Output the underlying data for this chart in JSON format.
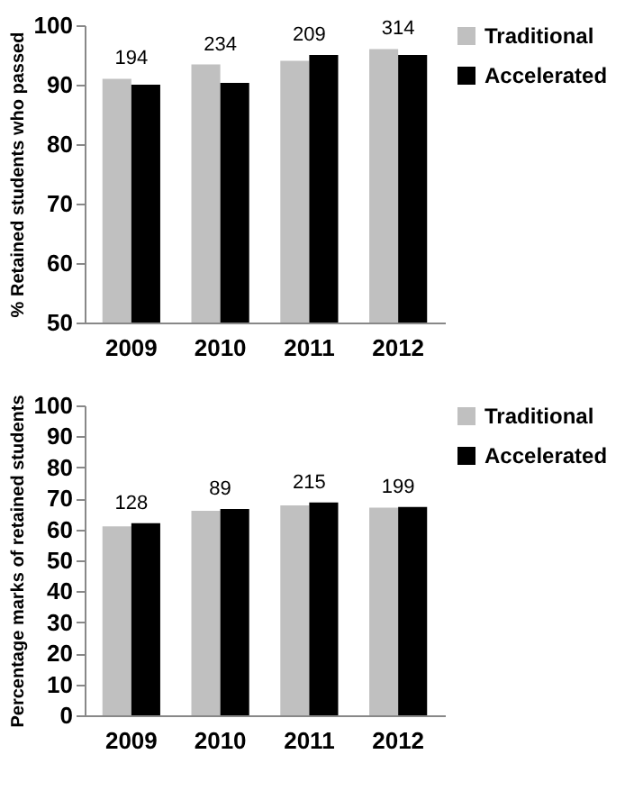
{
  "chart_data": [
    {
      "type": "bar",
      "ylabel": "% Retained students who passed",
      "categories": [
        "2009",
        "2010",
        "2011",
        "2012"
      ],
      "series": [
        {
          "name": "Traditional",
          "color": "#c0c0c0",
          "values": [
            91,
            93.4,
            94,
            96
          ]
        },
        {
          "name": "Accelerated",
          "color": "#000000",
          "values": [
            90,
            90.3,
            95,
            95
          ]
        }
      ],
      "ylim": [
        50,
        100
      ],
      "yticks": [
        50,
        60,
        70,
        80,
        90,
        100
      ],
      "grid": false,
      "legend": "top right",
      "annotations": [
        "194",
        "234",
        "209",
        "314"
      ]
    },
    {
      "type": "bar",
      "ylabel": "Percentage marks of retained students",
      "categories": [
        "2009",
        "2010",
        "2011",
        "2012"
      ],
      "series": [
        {
          "name": "Traditional",
          "color": "#c0c0c0",
          "values": [
            61,
            66,
            67.7,
            67
          ]
        },
        {
          "name": "Accelerated",
          "color": "#000000",
          "values": [
            62,
            66.6,
            68.7,
            67.2
          ]
        }
      ],
      "ylim": [
        0,
        100
      ],
      "yticks": [
        0,
        10,
        20,
        30,
        40,
        50,
        60,
        70,
        80,
        90,
        100
      ],
      "grid": false,
      "legend": "top right",
      "annotations": [
        "128",
        "89",
        "215",
        "199"
      ]
    }
  ]
}
